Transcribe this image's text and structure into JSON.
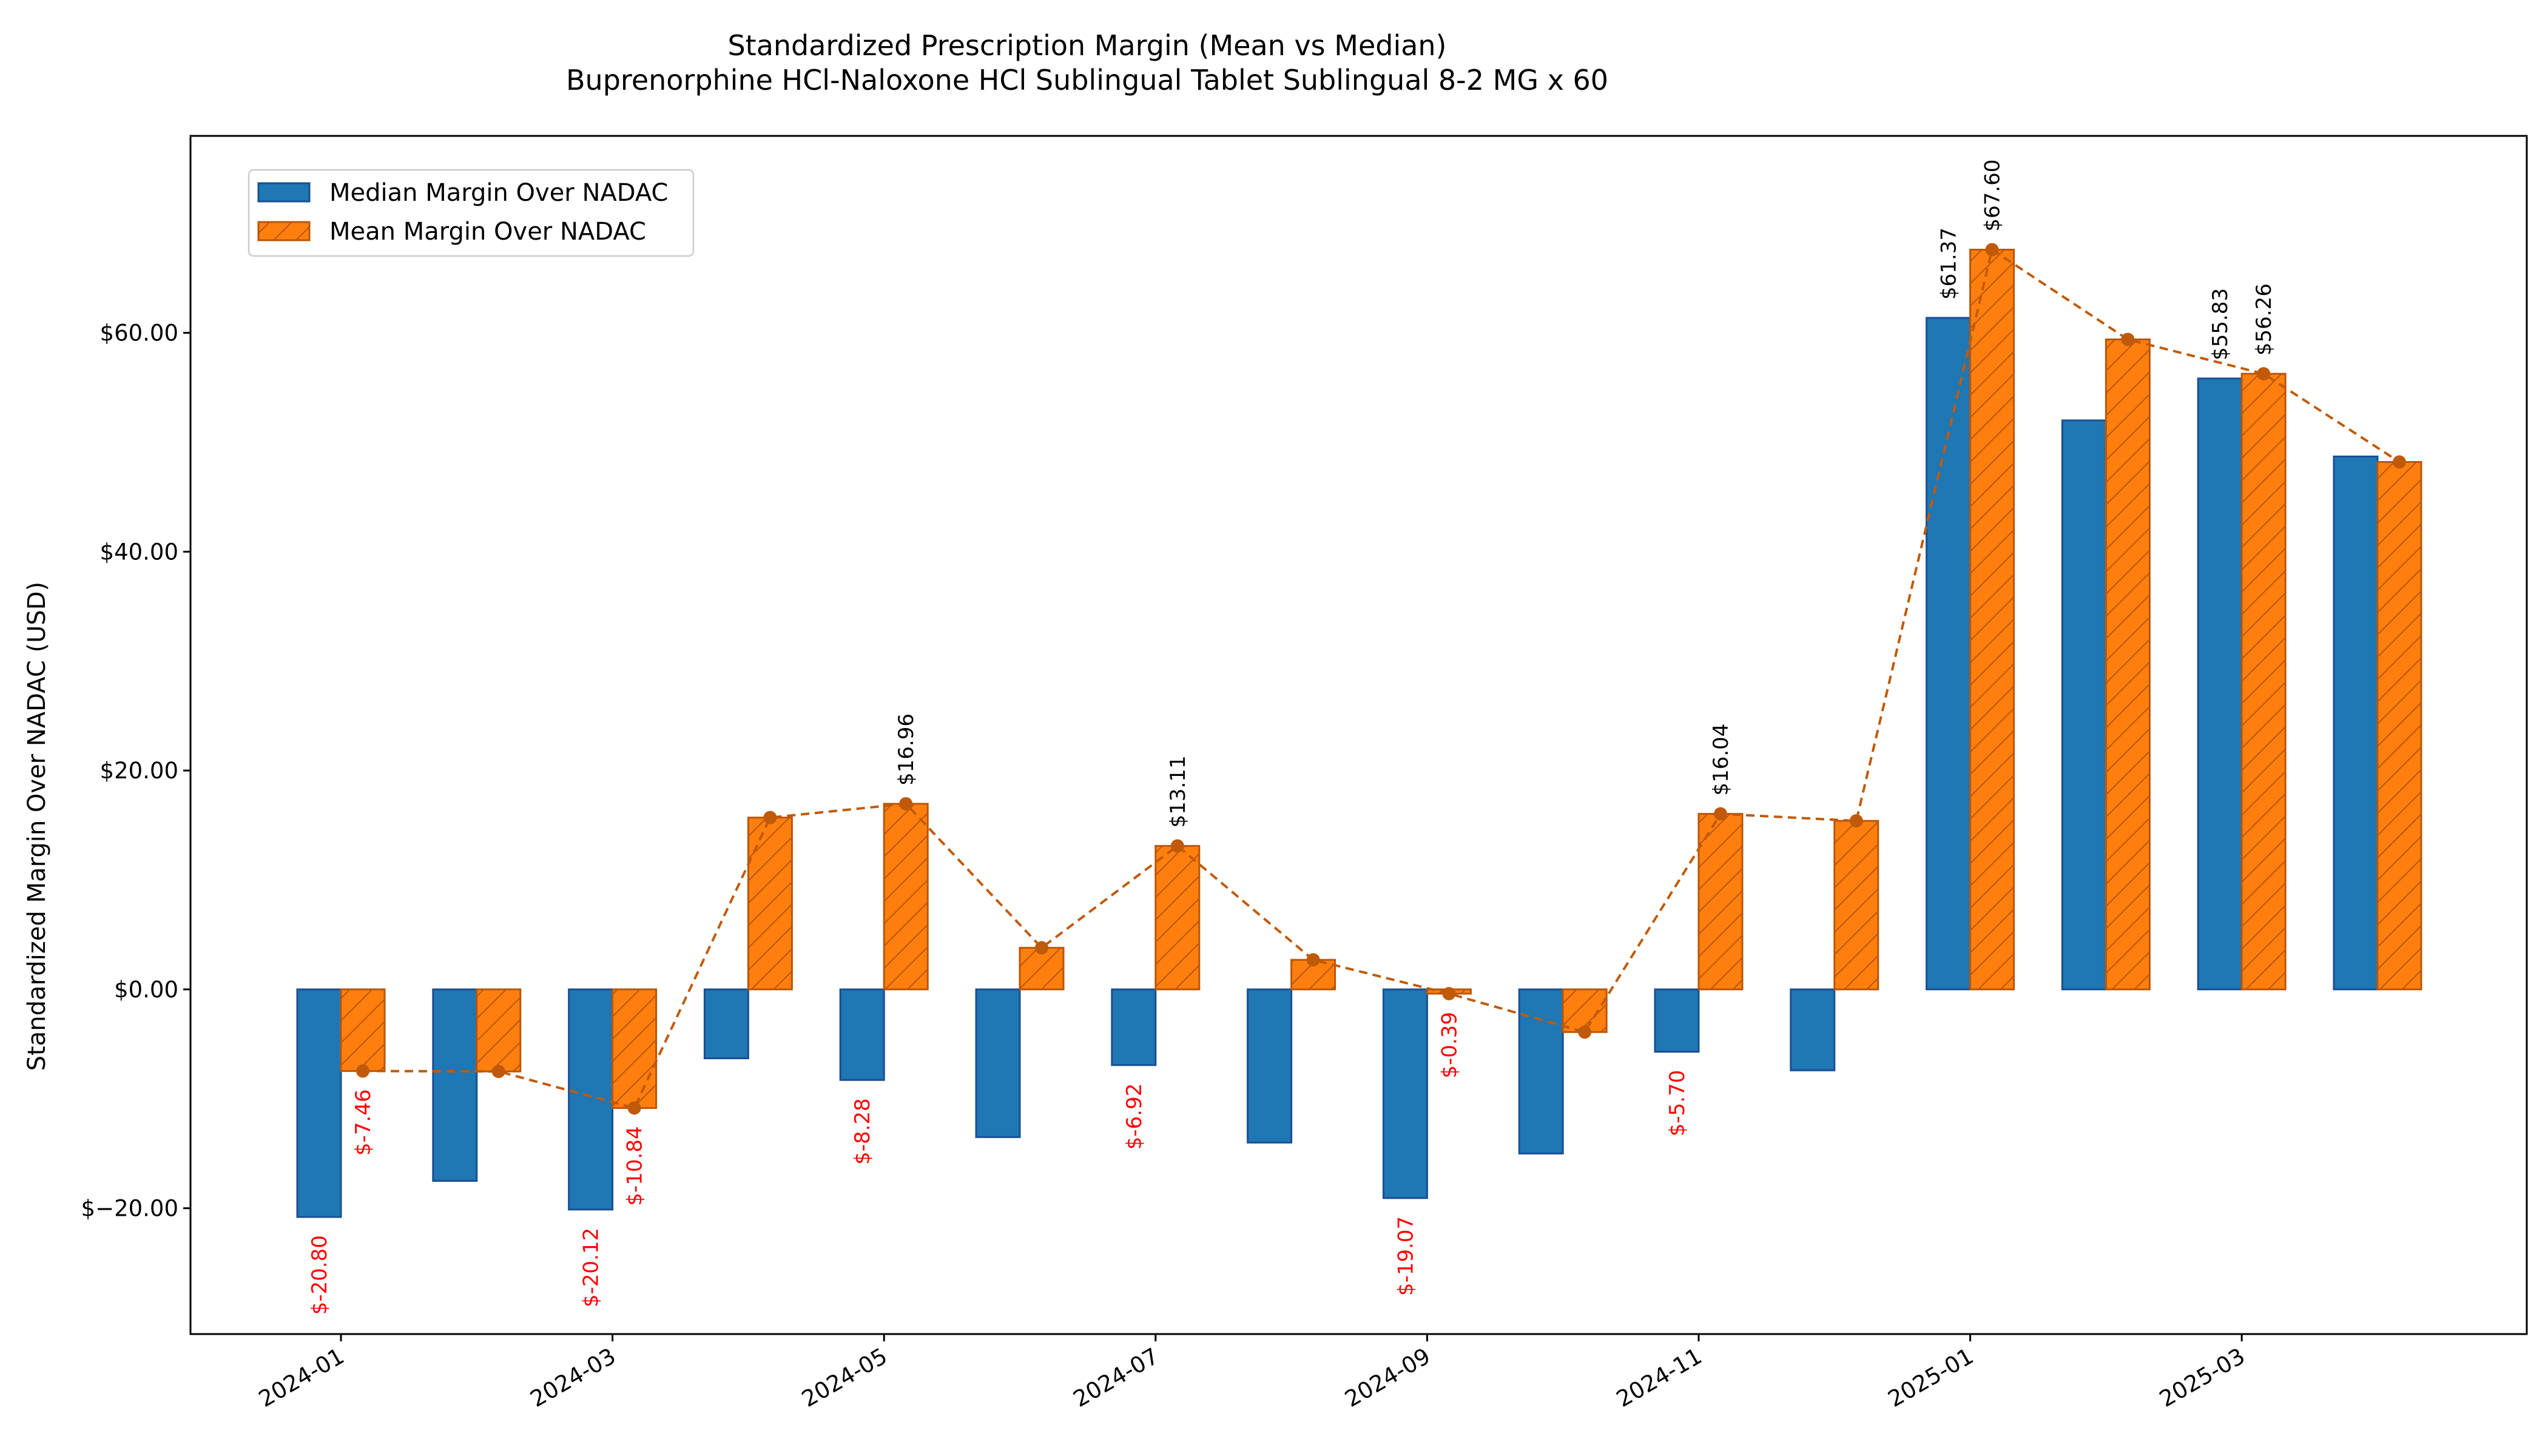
{
  "chart_data": {
    "type": "bar",
    "title": "Standardized Prescription Margin (Mean vs Median)",
    "subtitle": "Buprenorphine HCl-Naloxone HCl Sublingual Tablet Sublingual 8-2 MG x 60",
    "xlabel": "",
    "ylabel": "Standardized Margin Over NADAC (USD)",
    "ylim": [
      -31.5,
      78.0
    ],
    "grid": false,
    "legend_position": "top-left",
    "categories": [
      "2024-01",
      "2024-02",
      "2024-03",
      "2024-04",
      "2024-05",
      "2024-06",
      "2024-07",
      "2024-08",
      "2024-09",
      "2024-10",
      "2024-11",
      "2024-12",
      "2025-01",
      "2025-02",
      "2025-03",
      "2025-04"
    ],
    "x_tick_labels": [
      "2024-01",
      "2024-03",
      "2024-05",
      "2024-07",
      "2024-09",
      "2024-11",
      "2025-01",
      "2025-03"
    ],
    "y_ticks": [
      -20,
      0,
      20,
      40,
      60
    ],
    "y_tick_labels": [
      "$−20.00",
      "$0.00",
      "$20.00",
      "$40.00",
      "$60.00"
    ],
    "series": [
      {
        "name": "Median Margin Over NADAC",
        "color": "#1f77b4",
        "edge_color": "#1a4f94",
        "values": [
          -20.8,
          -17.5,
          -20.12,
          -6.3,
          -8.28,
          -13.5,
          -6.92,
          -14.0,
          -19.07,
          -15.0,
          -5.7,
          -7.4,
          61.37,
          52.0,
          55.83,
          48.7
        ],
        "annotations": [
          {
            "index": 0,
            "text": "$-20.80",
            "color": "#ff0000"
          },
          {
            "index": 2,
            "text": "$-20.12",
            "color": "#ff0000"
          },
          {
            "index": 4,
            "text": "$-8.28",
            "color": "#ff0000"
          },
          {
            "index": 6,
            "text": "$-6.92",
            "color": "#ff0000"
          },
          {
            "index": 8,
            "text": "$-19.07",
            "color": "#ff0000"
          },
          {
            "index": 10,
            "text": "$-5.70",
            "color": "#ff0000"
          },
          {
            "index": 12,
            "text": "$61.37",
            "color": "#000000"
          },
          {
            "index": 14,
            "text": "$55.83",
            "color": "#000000"
          }
        ]
      },
      {
        "name": "Mean Margin Over NADAC",
        "color": "#ff7f0e",
        "edge_color": "#b8560a",
        "line_color": "#c05a0a",
        "values": [
          -7.46,
          -7.5,
          -10.84,
          15.7,
          16.96,
          3.8,
          13.11,
          2.7,
          -0.39,
          -3.9,
          16.04,
          15.4,
          67.6,
          59.4,
          56.26,
          48.2
        ],
        "annotations": [
          {
            "index": 0,
            "text": "$-7.46",
            "color": "#ff0000"
          },
          {
            "index": 2,
            "text": "$-10.84",
            "color": "#ff0000"
          },
          {
            "index": 4,
            "text": "$16.96",
            "color": "#000000"
          },
          {
            "index": 6,
            "text": "$13.11",
            "color": "#000000"
          },
          {
            "index": 8,
            "text": "$-0.39",
            "color": "#ff0000"
          },
          {
            "index": 10,
            "text": "$16.04",
            "color": "#000000"
          },
          {
            "index": 12,
            "text": "$67.60",
            "color": "#000000"
          },
          {
            "index": 14,
            "text": "$56.26",
            "color": "#000000"
          }
        ]
      }
    ]
  }
}
